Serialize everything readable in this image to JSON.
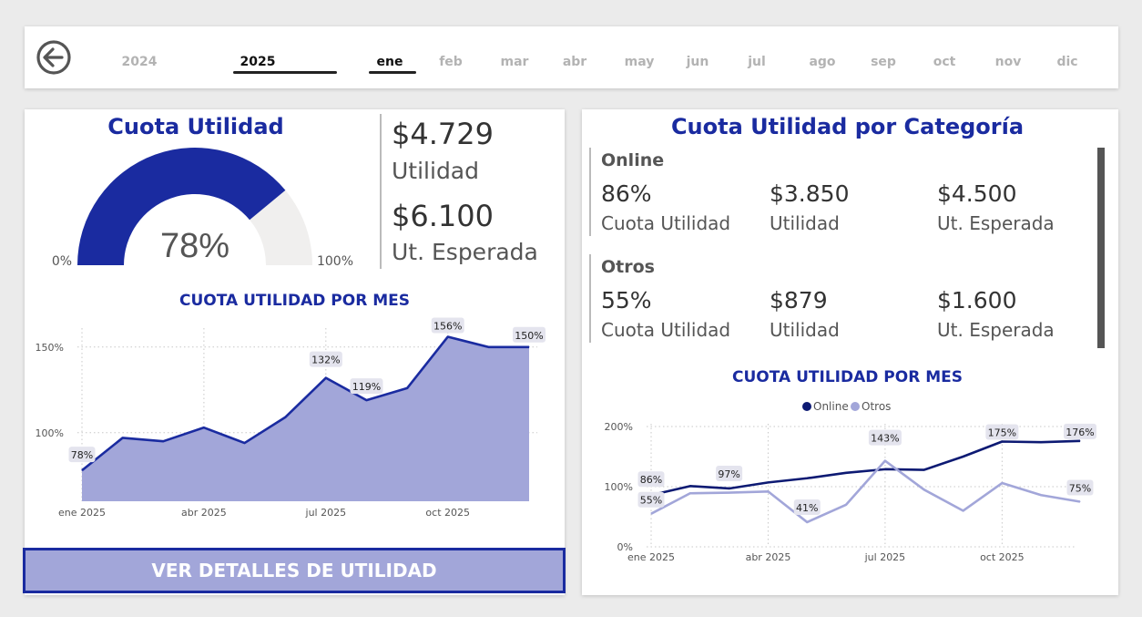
{
  "topbar": {
    "years": [
      {
        "label": "2024",
        "selected": false
      },
      {
        "label": "2025",
        "selected": true
      }
    ],
    "months": [
      {
        "label": "ene",
        "selected": true
      },
      {
        "label": "feb",
        "selected": false
      },
      {
        "label": "mar",
        "selected": false
      },
      {
        "label": "abr",
        "selected": false
      },
      {
        "label": "may",
        "selected": false
      },
      {
        "label": "jun",
        "selected": false
      },
      {
        "label": "jul",
        "selected": false
      },
      {
        "label": "ago",
        "selected": false
      },
      {
        "label": "sep",
        "selected": false
      },
      {
        "label": "oct",
        "selected": false
      },
      {
        "label": "nov",
        "selected": false
      },
      {
        "label": "dic",
        "selected": false
      }
    ],
    "back_icon": "arrow-left-circle-icon"
  },
  "gauge": {
    "title": "Cuota Utilidad",
    "value_label": "78%",
    "value": 0.78,
    "min_label": "0%",
    "max_label": "100%",
    "fill_color": "#1a2ba0",
    "track_color": "#f0efee"
  },
  "kpis": {
    "utilidad_value": "$4.729",
    "utilidad_label": "Utilidad",
    "esperada_value": "$6.100",
    "esperada_label": "Ut. Esperada"
  },
  "line1": {
    "title": "CUOTA UTILIDAD POR MES"
  },
  "detail_button": {
    "label": "VER DETALLES DE UTILIDAD"
  },
  "categories": {
    "title": "Cuota Utilidad por Categoría",
    "items": [
      {
        "name": "Online",
        "cuota": "86%",
        "cuota_label": "Cuota Utilidad",
        "utilidad": "$3.850",
        "utilidad_label": "Utilidad",
        "esperada": "$4.500",
        "esperada_label": "Ut. Esperada"
      },
      {
        "name": "Otros",
        "cuota": "55%",
        "cuota_label": "Cuota Utilidad",
        "utilidad": "$879",
        "utilidad_label": "Utilidad",
        "esperada": "$1.600",
        "esperada_label": "Ut. Esperada"
      }
    ]
  },
  "line2": {
    "title": "CUOTA UTILIDAD POR MES"
  },
  "chart_data": [
    {
      "type": "area",
      "title": "CUOTA UTILIDAD POR MES",
      "x": [
        "2025-01",
        "2025-02",
        "2025-03",
        "2025-04",
        "2025-05",
        "2025-06",
        "2025-07",
        "2025-08",
        "2025-09",
        "2025-10",
        "2025-11",
        "2025-12"
      ],
      "x_tick_labels": [
        "ene 2025",
        "abr 2025",
        "jul 2025",
        "oct 2025"
      ],
      "y_tick_labels": [
        "100%",
        "150%"
      ],
      "ylim": [
        60,
        160
      ],
      "series": [
        {
          "values": [
            78,
            97,
            95,
            103,
            94,
            109,
            132,
            119,
            126,
            156,
            150,
            150
          ],
          "data_labels": {
            "0": "78%",
            "6": "132%",
            "7": "119%",
            "9": "156%",
            "11": "150%"
          }
        }
      ],
      "line_color": "#1a2ba0",
      "fill_color": "#a2a6d9",
      "grid": true
    },
    {
      "type": "line",
      "title": "CUOTA UTILIDAD POR MES",
      "x": [
        "2025-01",
        "2025-02",
        "2025-03",
        "2025-04",
        "2025-05",
        "2025-06",
        "2025-07",
        "2025-08",
        "2025-09",
        "2025-10",
        "2025-11",
        "2025-12"
      ],
      "x_tick_labels": [
        "ene 2025",
        "abr 2025",
        "jul 2025",
        "oct 2025"
      ],
      "y_tick_labels": [
        "0%",
        "100%",
        "200%"
      ],
      "ylim": [
        0,
        200
      ],
      "legend": "top-center",
      "series": [
        {
          "name": "Online",
          "color": "#0d1a73",
          "values": [
            86,
            101,
            97,
            107,
            114,
            123,
            129,
            128,
            150,
            175,
            174,
            176
          ],
          "data_labels": {
            "0": "86%",
            "2": "97%",
            "9": "175%",
            "11": "176%"
          }
        },
        {
          "name": "Otros",
          "color": "#a2a6d9",
          "values": [
            55,
            89,
            90,
            92,
            41,
            70,
            143,
            95,
            60,
            106,
            86,
            75
          ],
          "data_labels": {
            "0": "55%",
            "4": "41%",
            "6": "143%",
            "11": "75%"
          }
        }
      ],
      "grid": true
    }
  ]
}
